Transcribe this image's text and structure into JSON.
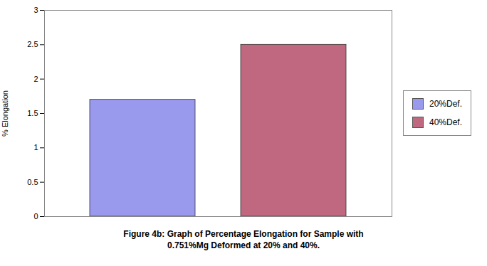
{
  "chart_data": {
    "type": "bar",
    "categories": [
      "20%Def.",
      "40%Def."
    ],
    "values": [
      1.7,
      2.5
    ],
    "colors": [
      "#9999ee",
      "#c06880"
    ],
    "ylabel": "% Elongation",
    "ylim": [
      0,
      3
    ],
    "yticks": [
      0,
      0.5,
      1,
      1.5,
      2,
      2.5,
      3
    ],
    "grid": false,
    "legend": "right",
    "tick_labels": "y",
    "caption": "Figure 4b: Graph of Percentage Elongation for Sample with\n0.751%Mg Deformed at 20% and 40%."
  }
}
